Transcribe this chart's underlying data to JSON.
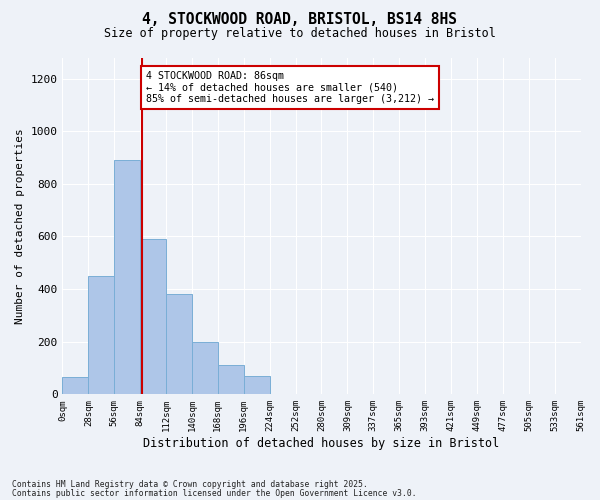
{
  "title": "4, STOCKWOOD ROAD, BRISTOL, BS14 8HS",
  "subtitle": "Size of property relative to detached houses in Bristol",
  "xlabel": "Distribution of detached houses by size in Bristol",
  "ylabel": "Number of detached properties",
  "bar_values": [
    65,
    450,
    890,
    590,
    380,
    200,
    110,
    70,
    0,
    0,
    0,
    0,
    0,
    0,
    0,
    0,
    0,
    0,
    0,
    0
  ],
  "bin_labels": [
    "0sqm",
    "28sqm",
    "56sqm",
    "84sqm",
    "112sqm",
    "140sqm",
    "168sqm",
    "196sqm",
    "224sqm",
    "252sqm",
    "280sqm",
    "309sqm",
    "337sqm",
    "365sqm",
    "393sqm",
    "421sqm",
    "449sqm",
    "477sqm",
    "505sqm",
    "533sqm",
    "561sqm"
  ],
  "bar_color": "#aec6e8",
  "bar_edge_color": "#7aaed6",
  "vline_x": 3.07,
  "vline_color": "#cc0000",
  "annotation_text": "4 STOCKWOOD ROAD: 86sqm\n← 14% of detached houses are smaller (540)\n85% of semi-detached houses are larger (3,212) →",
  "annotation_box_facecolor": "#ffffff",
  "annotation_box_edgecolor": "#cc0000",
  "ylim": [
    0,
    1280
  ],
  "yticks": [
    0,
    200,
    400,
    600,
    800,
    1000,
    1200
  ],
  "footnote1": "Contains HM Land Registry data © Crown copyright and database right 2025.",
  "footnote2": "Contains public sector information licensed under the Open Government Licence v3.0.",
  "background_color": "#eef2f8"
}
